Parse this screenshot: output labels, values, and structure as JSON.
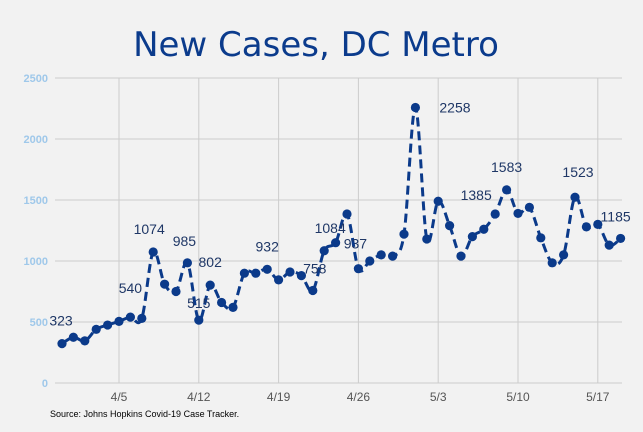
{
  "chart_data": {
    "type": "line",
    "title": "New Cases, DC Metro",
    "source": "Source: Johns Hopkins Covid-19 Case Tracker.",
    "xlabel": "",
    "ylabel": "",
    "ylim": [
      0,
      2500
    ],
    "yticks": [
      0,
      500,
      1000,
      1500,
      2000,
      2500
    ],
    "xtick_labels": [
      "4/5",
      "4/12",
      "4/19",
      "4/26",
      "5/3",
      "5/10",
      "5/17"
    ],
    "grid": true,
    "line_style": "dashed",
    "colors": {
      "line": "#0b3a8a",
      "title": "#0b3b8c",
      "ytick": "#9fc8ea",
      "grid": "#cccccc",
      "background": "#f2f2f2"
    },
    "x": [
      "3/31",
      "4/1",
      "4/2",
      "4/3",
      "4/4",
      "4/5",
      "4/6",
      "4/7",
      "4/8",
      "4/9",
      "4/10",
      "4/11",
      "4/12",
      "4/13",
      "4/14",
      "4/15",
      "4/16",
      "4/17",
      "4/18",
      "4/19",
      "4/20",
      "4/21",
      "4/22",
      "4/23",
      "4/24",
      "4/25",
      "4/26",
      "4/27",
      "4/28",
      "4/29",
      "4/30",
      "5/1",
      "5/2",
      "5/3",
      "5/4",
      "5/5",
      "5/6",
      "5/7",
      "5/8",
      "5/9",
      "5/10",
      "5/11",
      "5/12",
      "5/13",
      "5/14",
      "5/15",
      "5/16",
      "5/17",
      "5/18",
      "5/19"
    ],
    "values": [
      323,
      375,
      345,
      440,
      475,
      505,
      540,
      530,
      1074,
      810,
      750,
      985,
      515,
      802,
      660,
      620,
      900,
      900,
      932,
      845,
      910,
      880,
      758,
      1084,
      1150,
      1385,
      937,
      1000,
      1050,
      1040,
      1220,
      2258,
      1180,
      1490,
      1290,
      1040,
      1200,
      1260,
      1385,
      1583,
      1390,
      1440,
      1190,
      985,
      1050,
      1523,
      1280,
      1300,
      1130,
      1185
    ],
    "data_labels": [
      {
        "index": 0,
        "text": "323"
      },
      {
        "index": 6,
        "text": "540"
      },
      {
        "index": 8,
        "text": "1074"
      },
      {
        "index": 11,
        "text": "985"
      },
      {
        "index": 12,
        "text": "515"
      },
      {
        "index": 13,
        "text": "802"
      },
      {
        "index": 18,
        "text": "932"
      },
      {
        "index": 22,
        "text": "758"
      },
      {
        "index": 23,
        "text": "1084"
      },
      {
        "index": 26,
        "text": "937"
      },
      {
        "index": 31,
        "text": "2258"
      },
      {
        "index": 38,
        "text": "1385"
      },
      {
        "index": 39,
        "text": "1583"
      },
      {
        "index": 45,
        "text": "1523"
      },
      {
        "index": 49,
        "text": "1185"
      }
    ]
  }
}
